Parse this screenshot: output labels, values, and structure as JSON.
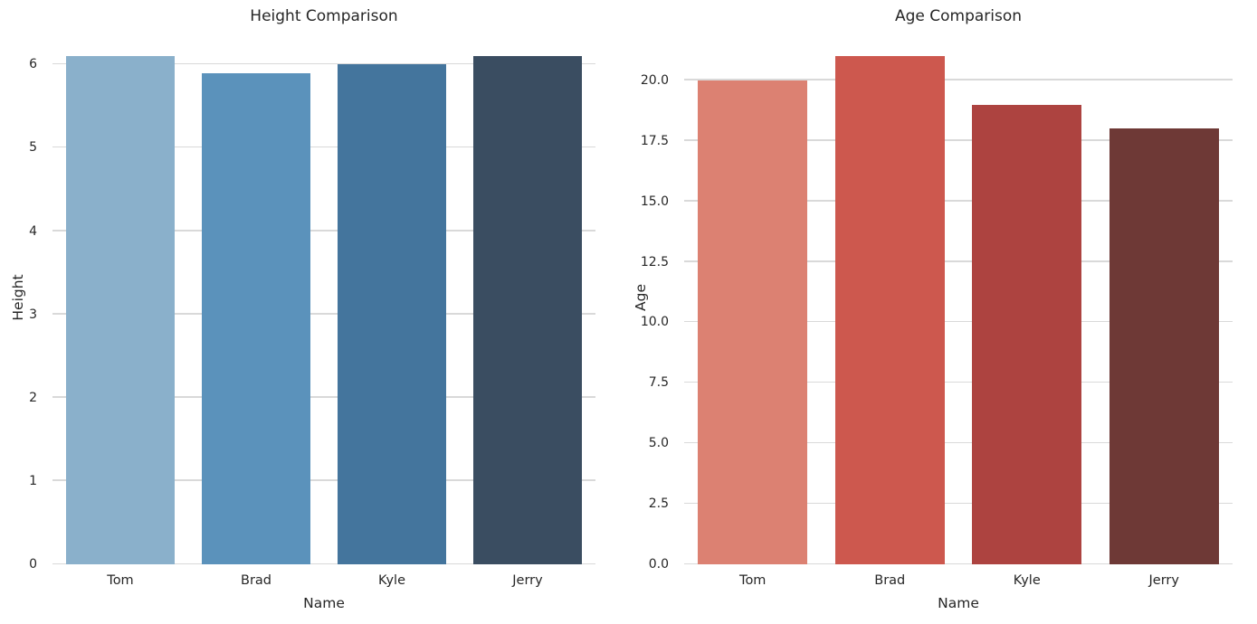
{
  "chart_data": [
    {
      "type": "bar",
      "title": "Height Comparison",
      "xlabel": "Name",
      "ylabel": "Height",
      "categories": [
        "Tom",
        "Brad",
        "Kyle",
        "Jerry"
      ],
      "values": [
        6.1,
        5.9,
        6.0,
        6.1
      ],
      "yticks": [
        0,
        1,
        2,
        3,
        4,
        5,
        6
      ],
      "ytick_labels": [
        "0",
        "1",
        "2",
        "3",
        "4",
        "5",
        "6"
      ],
      "ylim": [
        0,
        6.405
      ],
      "bar_colors": [
        "#8ab0cb",
        "#5b92bb",
        "#44759d",
        "#3a4d61"
      ],
      "grid": true,
      "legend": "none"
    },
    {
      "type": "bar",
      "title": "Age Comparison",
      "xlabel": "Name",
      "ylabel": "Age",
      "categories": [
        "Tom",
        "Brad",
        "Kyle",
        "Jerry"
      ],
      "values": [
        20,
        21,
        19,
        18
      ],
      "yticks": [
        0,
        2.5,
        5,
        7.5,
        10,
        12.5,
        15,
        17.5,
        20
      ],
      "ytick_labels": [
        "0.0",
        "2.5",
        "5.0",
        "7.5",
        "10.0",
        "12.5",
        "15.0",
        "17.5",
        "20.0"
      ],
      "ylim": [
        0,
        22.05
      ],
      "bar_colors": [
        "#dc8172",
        "#cd584e",
        "#ad4340",
        "#6e3936"
      ],
      "grid": true,
      "legend": "none"
    }
  ],
  "style": {
    "background_color": "#ffffff",
    "grid_color": "#d9d9d9",
    "text_color": "#262626"
  }
}
